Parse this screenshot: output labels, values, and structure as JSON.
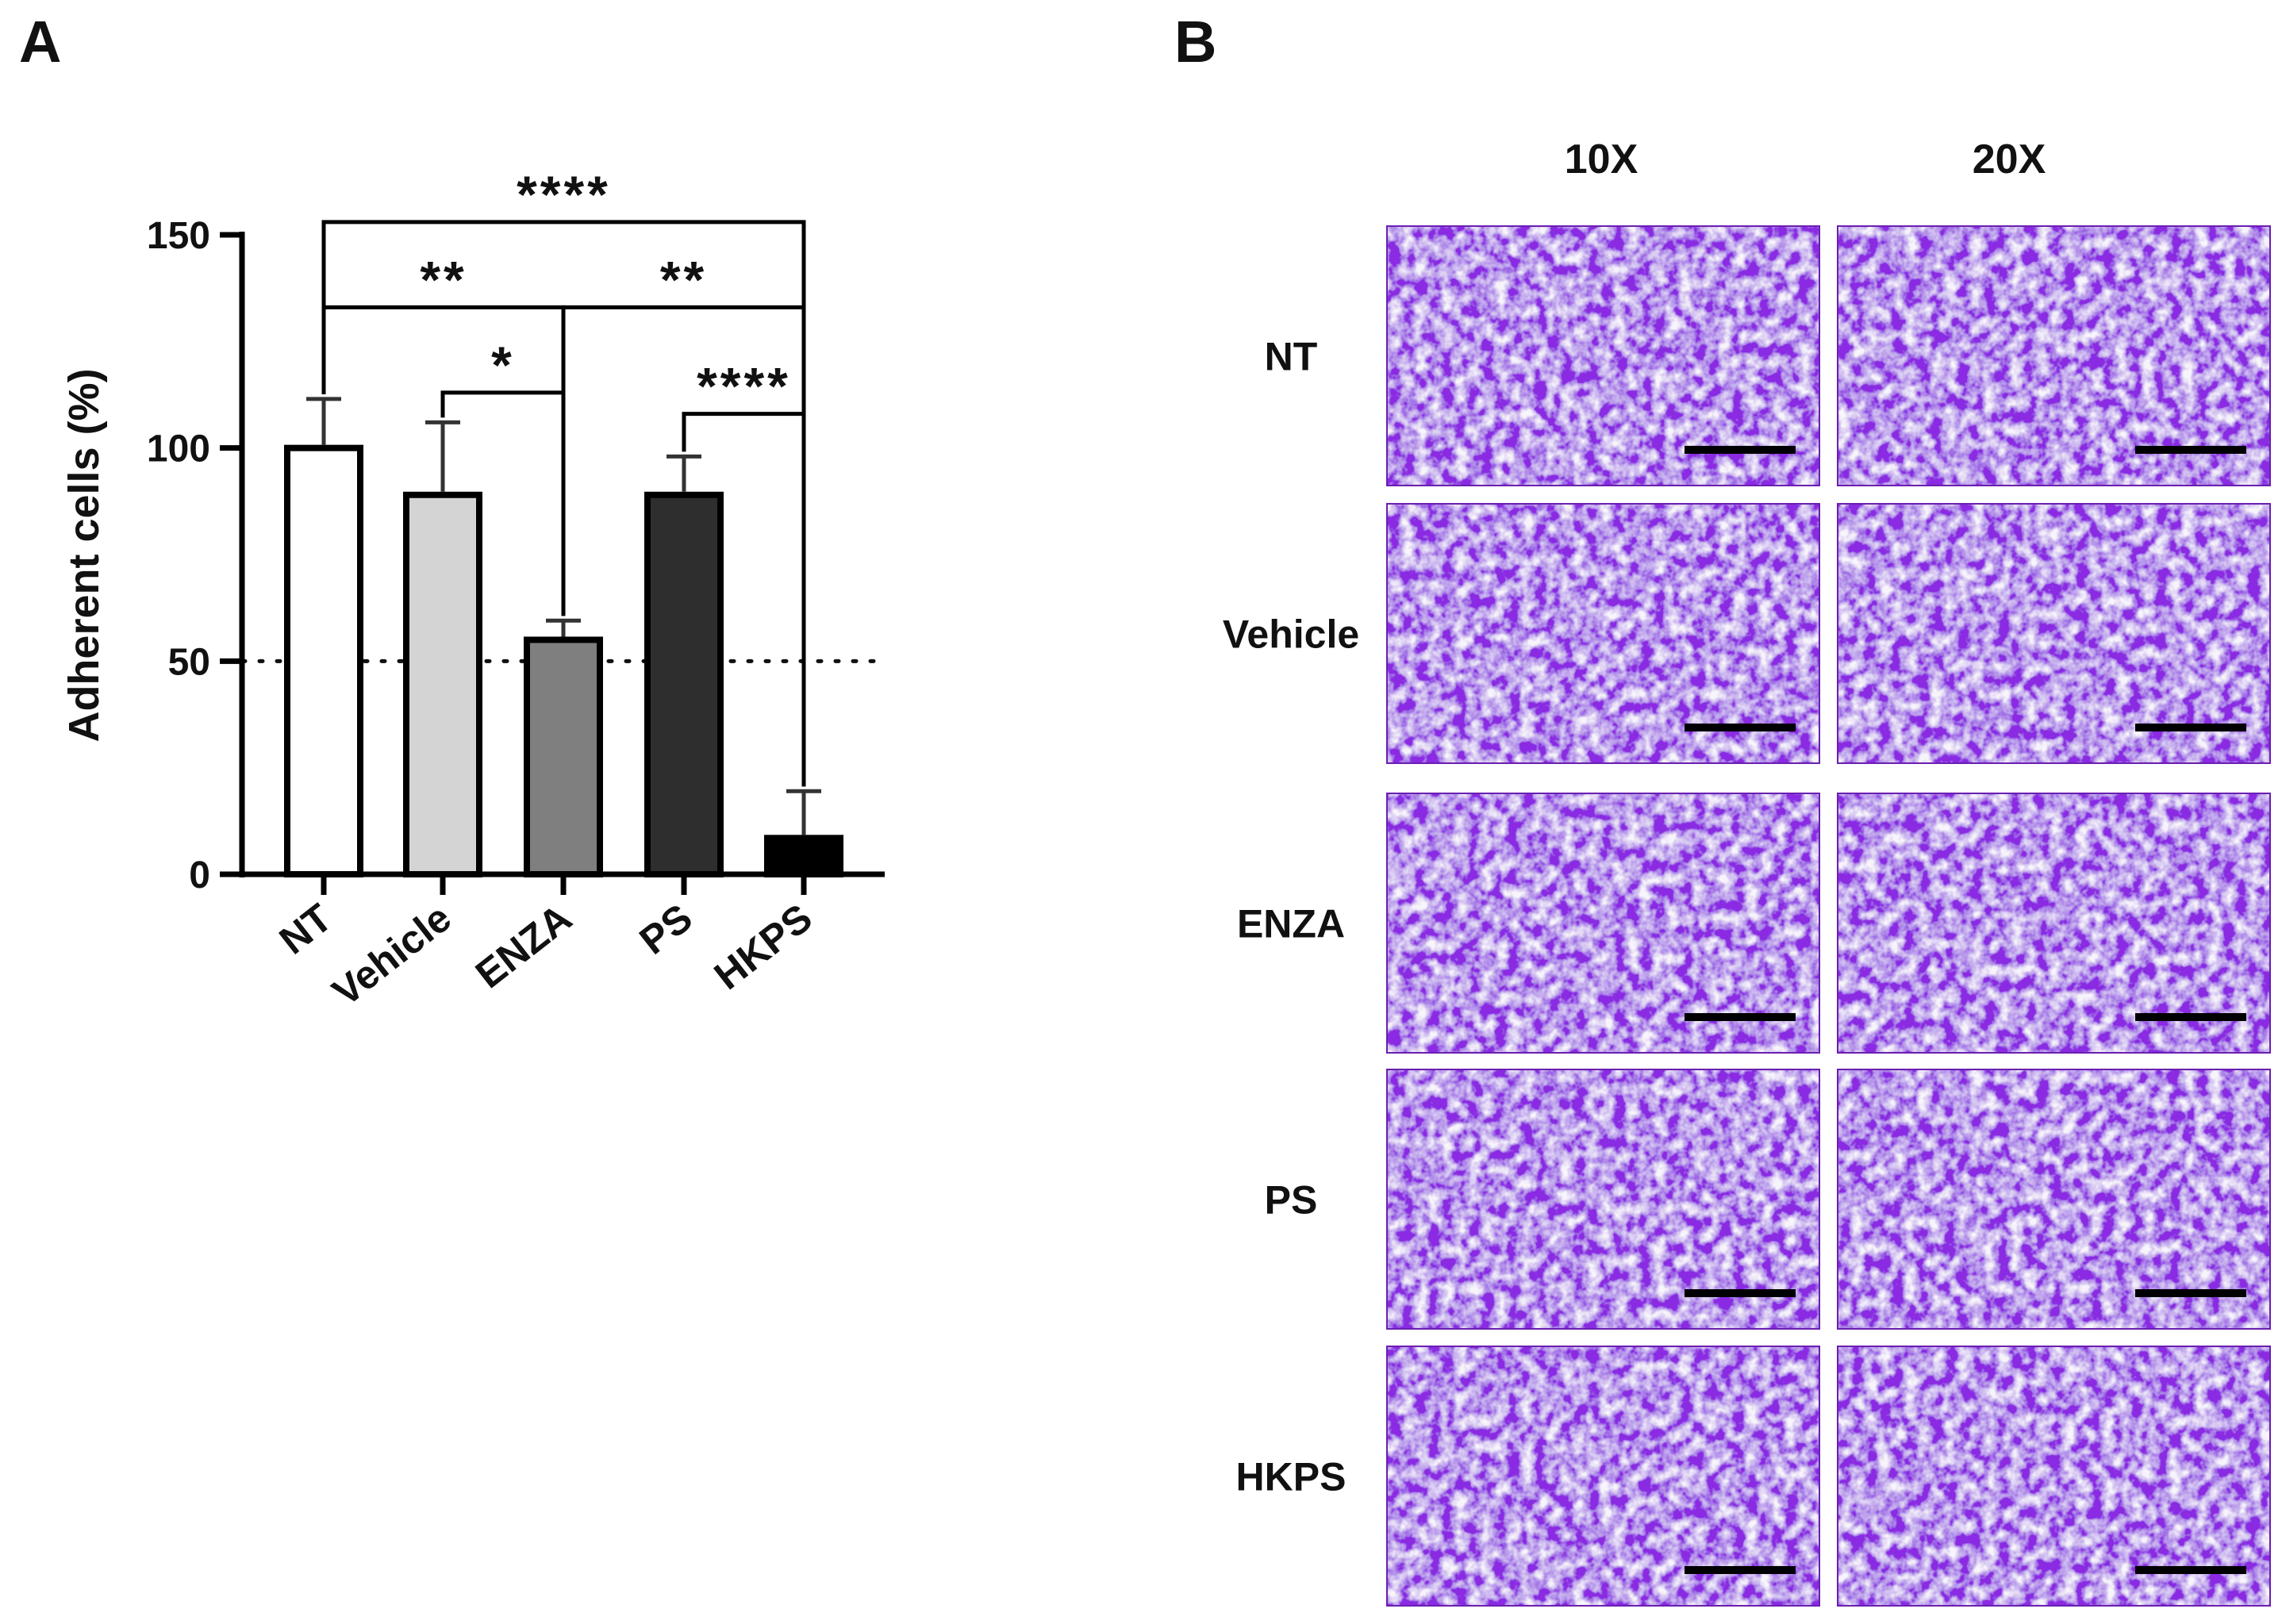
{
  "panels": {
    "a_label": "A",
    "b_label": "B"
  },
  "chart_data": {
    "type": "bar",
    "categories": [
      "NT",
      "Vehicle",
      "ENZA",
      "PS",
      "HKPS"
    ],
    "values": [
      100,
      89,
      55,
      89,
      8.5
    ],
    "errors": [
      11.5,
      17,
      4.5,
      9,
      11
    ],
    "bar_colors": [
      "#ffffff",
      "#d4d4d4",
      "#7f7f7f",
      "#2e2e2e",
      "#000000"
    ],
    "ylabel": "Adherent cells (%)",
    "xlabel": "",
    "title": "",
    "ylim": [
      0,
      150
    ],
    "yticks": [
      0,
      50,
      100,
      150
    ],
    "ytick_labels": [
      "0",
      "50",
      "100",
      "150"
    ],
    "reference_line": 50,
    "grid": false,
    "significance": [
      {
        "from": "NT",
        "to": "HKPS",
        "y": 153,
        "label": "****"
      },
      {
        "from": "NT",
        "to": "ENZA",
        "y": 133,
        "label": "**"
      },
      {
        "from": "ENZA",
        "to": "HKPS",
        "y": 133,
        "label": "**"
      },
      {
        "from": "Vehicle",
        "to": "ENZA",
        "y": 113,
        "label": "*"
      },
      {
        "from": "PS",
        "to": "HKPS",
        "y": 108,
        "label": "****"
      }
    ]
  },
  "micrographs": {
    "columns": [
      "10X",
      "20X"
    ],
    "rows": [
      "NT",
      "Vehicle",
      "ENZA",
      "PS",
      "HKPS"
    ],
    "stain_color": "#8a2be2"
  }
}
